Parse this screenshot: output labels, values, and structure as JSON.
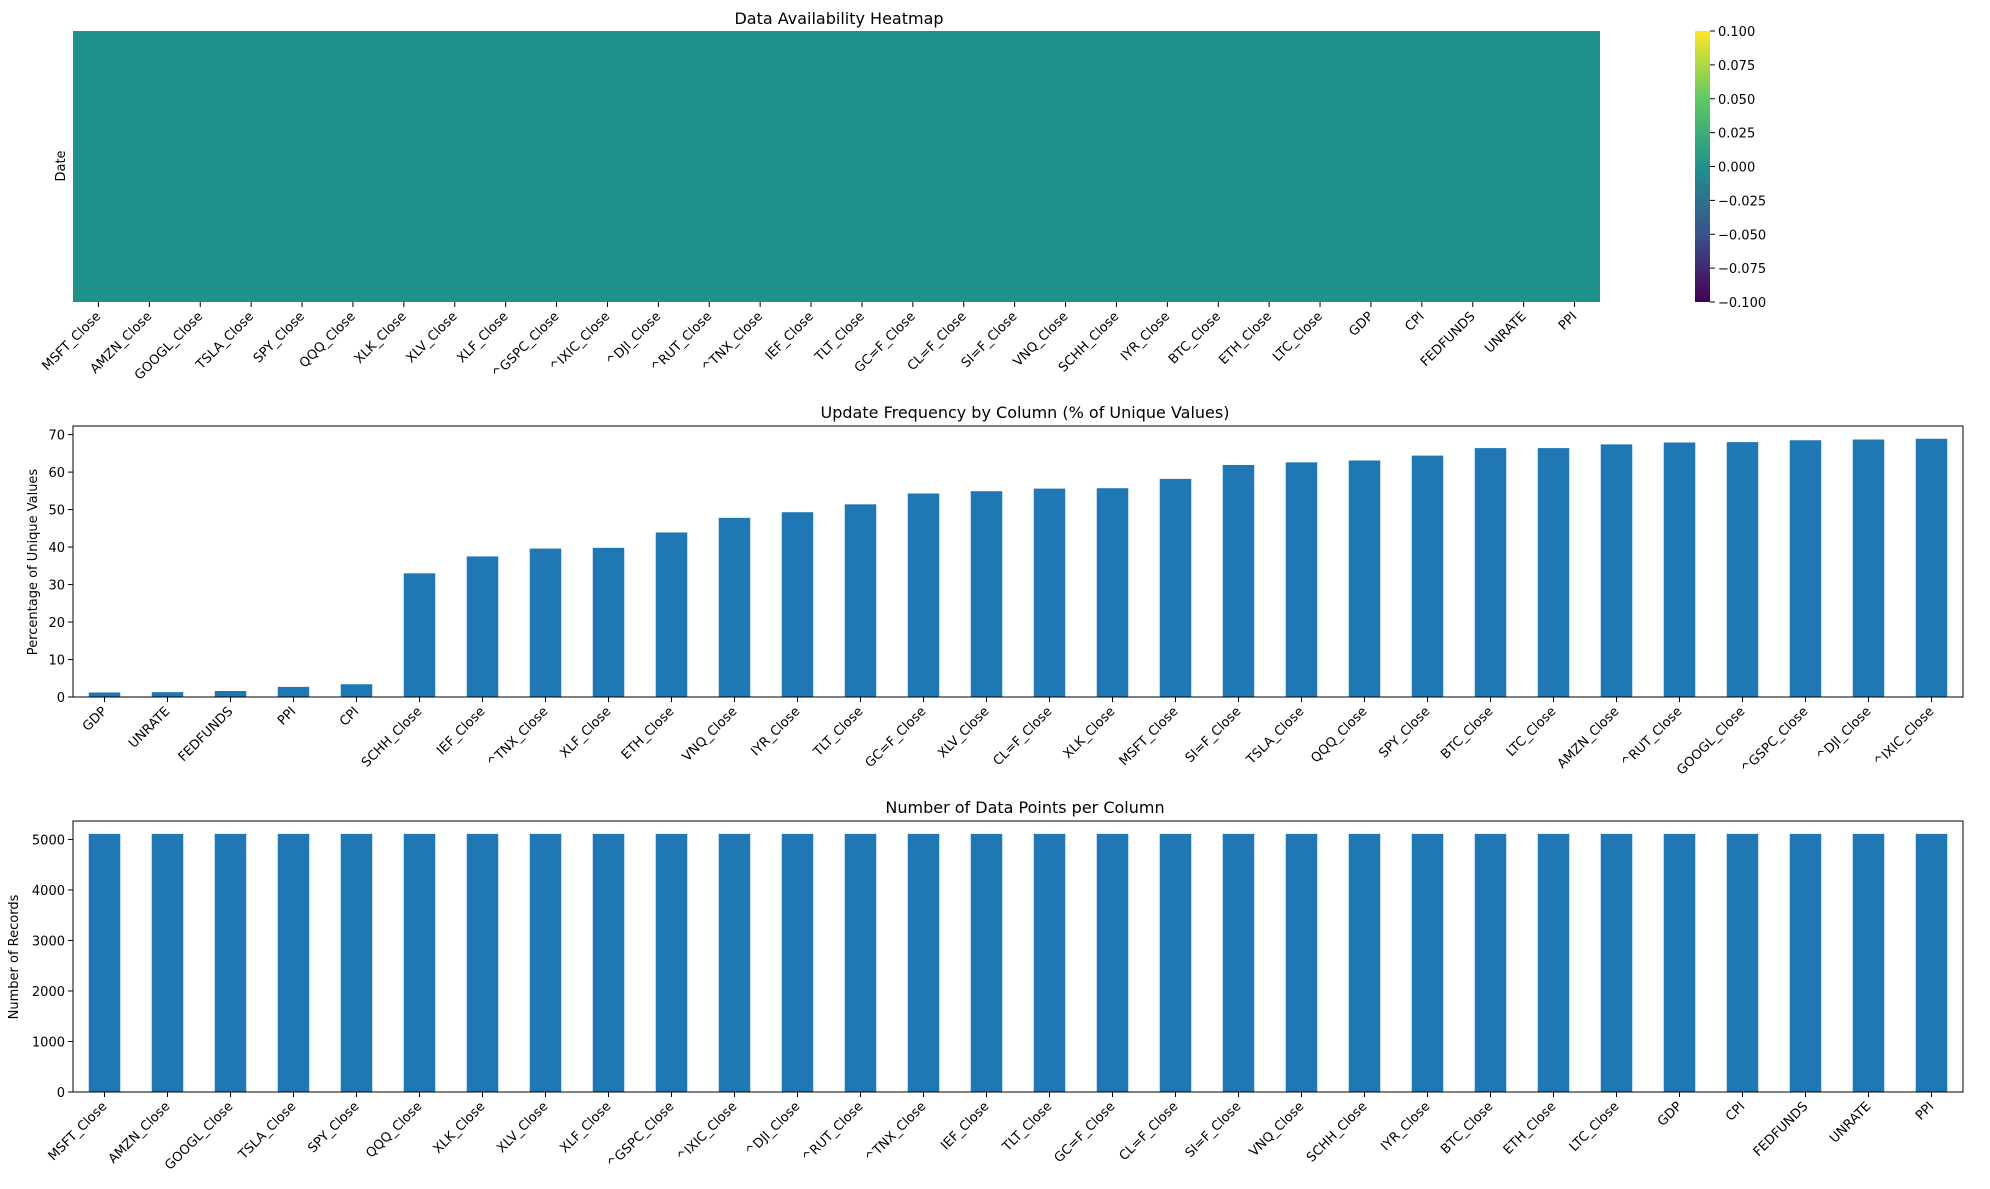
{
  "colors": {
    "bar": "#1f77b4",
    "heatmap_cell": "#21918c",
    "colorbar_stops": [
      "#440154",
      "#3b528b",
      "#21918c",
      "#5ec962",
      "#fde725"
    ]
  },
  "chart_data": [
    {
      "type": "heatmap",
      "title": "Data Availability Heatmap",
      "xlabel": "",
      "ylabel": "Date",
      "categories": [
        "MSFT_Close",
        "AMZN_Close",
        "GOOGL_Close",
        "TSLA_Close",
        "SPY_Close",
        "QQQ_Close",
        "XLK_Close",
        "XLV_Close",
        "XLF_Close",
        "^GSPC_Close",
        "^IXIC_Close",
        "^DJI_Close",
        "^RUT_Close",
        "^TNX_Close",
        "IEF_Close",
        "TLT_Close",
        "GC=F_Close",
        "CL=F_Close",
        "SI=F_Close",
        "VNQ_Close",
        "SCHH_Close",
        "IYR_Close",
        "BTC_Close",
        "ETH_Close",
        "LTC_Close",
        "GDP",
        "CPI",
        "FEDFUNDS",
        "UNRATE",
        "PPI"
      ],
      "value": 0,
      "colormap": "viridis",
      "colorbar_range": [
        -0.1,
        0.1
      ],
      "colorbar_ticks": [
        "0.100",
        "0.075",
        "0.050",
        "0.025",
        "0.000",
        "−0.025",
        "−0.050",
        "−0.075",
        "−0.100"
      ],
      "grid": false
    },
    {
      "type": "bar",
      "title": "Update Frequency by Column (% of Unique Values)",
      "xlabel": "",
      "ylabel": "Percentage of Unique Values",
      "categories": [
        "GDP",
        "UNRATE",
        "FEDFUNDS",
        "PPI",
        "CPI",
        "SCHH_Close",
        "IEF_Close",
        "^TNX_Close",
        "XLF_Close",
        "ETH_Close",
        "VNQ_Close",
        "IYR_Close",
        "TLT_Close",
        "GC=F_Close",
        "XLV_Close",
        "CL=F_Close",
        "XLK_Close",
        "MSFT_Close",
        "SI=F_Close",
        "TSLA_Close",
        "QQQ_Close",
        "SPY_Close",
        "BTC_Close",
        "LTC_Close",
        "AMZN_Close",
        "^RUT_Close",
        "GOOGL_Close",
        "^GSPC_Close",
        "^DJI_Close",
        "^IXIC_Close"
      ],
      "values": [
        1.2,
        1.3,
        1.6,
        2.7,
        3.4,
        33.0,
        37.5,
        39.6,
        39.8,
        43.9,
        47.8,
        49.3,
        51.4,
        54.3,
        54.9,
        55.6,
        55.7,
        58.2,
        61.9,
        62.6,
        63.1,
        64.4,
        66.4,
        66.4,
        67.4,
        67.9,
        68.0,
        68.5,
        68.7,
        68.9
      ],
      "yticks": [
        "0",
        "10",
        "20",
        "30",
        "40",
        "50",
        "60",
        "70"
      ],
      "ylim": [
        0,
        72.3
      ],
      "grid": false
    },
    {
      "type": "bar",
      "title": "Number of Data Points per Column",
      "xlabel": "",
      "ylabel": "Number of Records",
      "categories": [
        "MSFT_Close",
        "AMZN_Close",
        "GOOGL_Close",
        "TSLA_Close",
        "SPY_Close",
        "QQQ_Close",
        "XLK_Close",
        "XLV_Close",
        "XLF_Close",
        "^GSPC_Close",
        "^IXIC_Close",
        "^DJI_Close",
        "^RUT_Close",
        "^TNX_Close",
        "IEF_Close",
        "TLT_Close",
        "GC=F_Close",
        "CL=F_Close",
        "SI=F_Close",
        "VNQ_Close",
        "SCHH_Close",
        "IYR_Close",
        "BTC_Close",
        "ETH_Close",
        "LTC_Close",
        "GDP",
        "CPI",
        "FEDFUNDS",
        "UNRATE",
        "PPI"
      ],
      "values": [
        5110,
        5110,
        5110,
        5110,
        5110,
        5110,
        5110,
        5110,
        5110,
        5110,
        5110,
        5110,
        5110,
        5110,
        5110,
        5110,
        5110,
        5110,
        5110,
        5110,
        5110,
        5110,
        5110,
        5110,
        5110,
        5110,
        5110,
        5110,
        5110,
        5110
      ],
      "yticks": [
        "0",
        "1000",
        "2000",
        "3000",
        "4000",
        "5000"
      ],
      "ylim": [
        0,
        5365
      ],
      "grid": false
    }
  ]
}
